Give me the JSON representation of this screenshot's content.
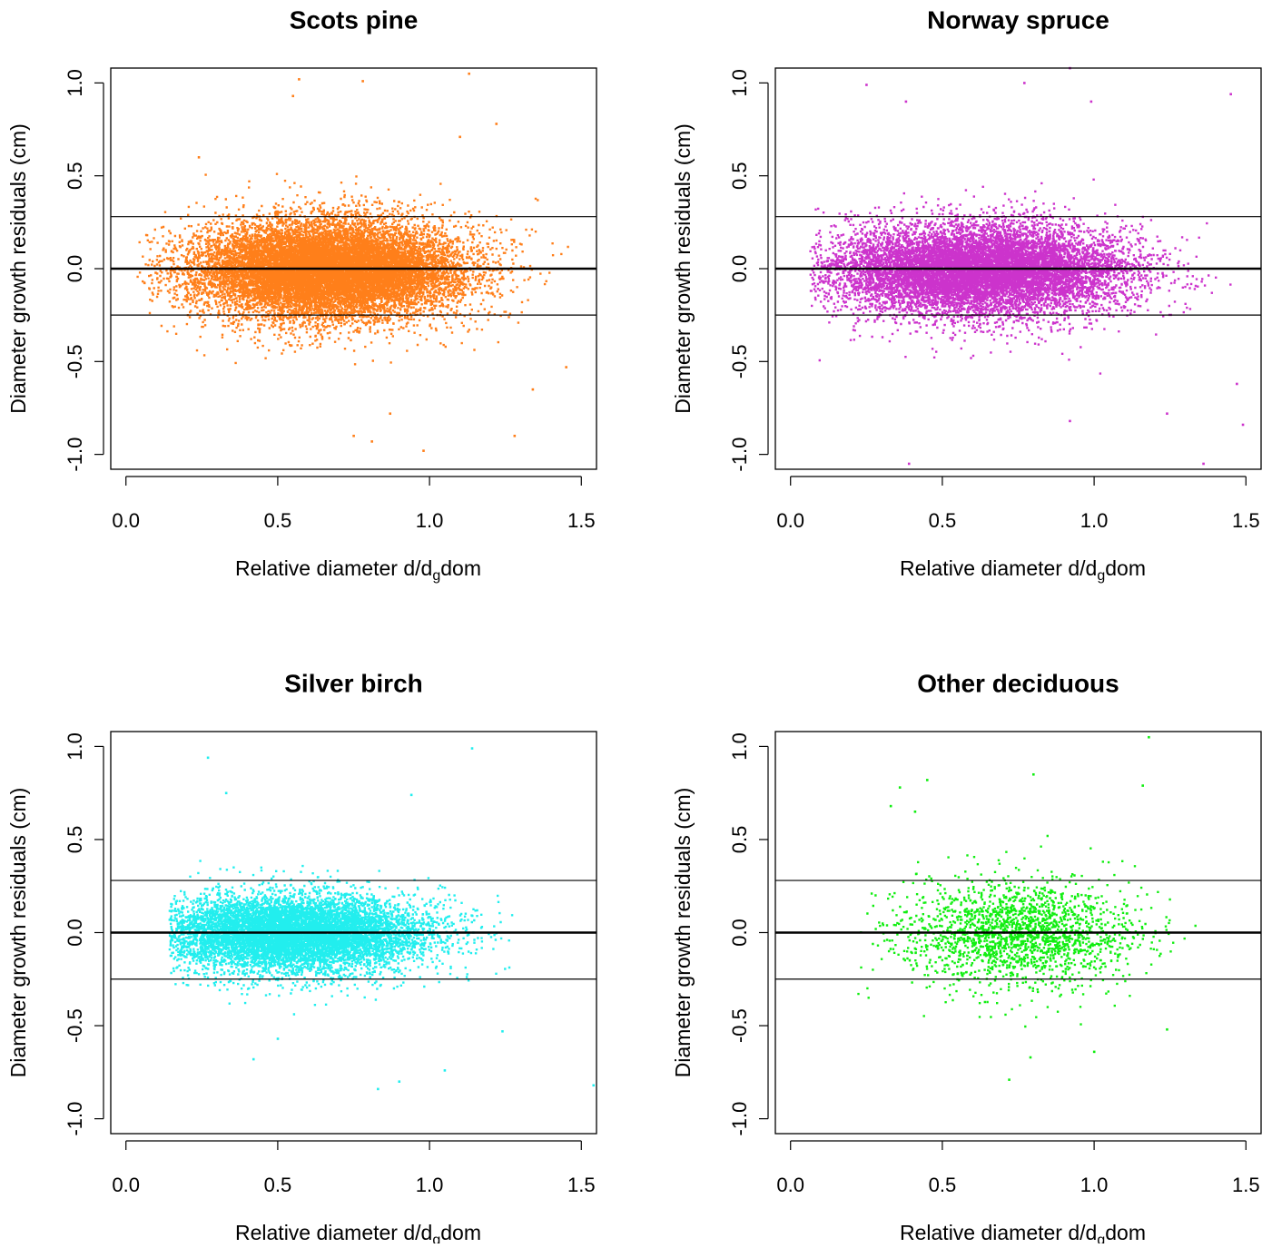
{
  "chart_data": [
    {
      "type": "scatter",
      "title": "Scots pine",
      "xlabel_main": "Relative diameter d/d",
      "xlabel_sub": "g",
      "xlabel_tail": "dom",
      "ylabel": "Diameter growth residuals (cm)",
      "xlim": [
        -0.05,
        1.55
      ],
      "ylim": [
        -1.08,
        1.08
      ],
      "xticks": [
        0.0,
        0.5,
        1.0,
        1.5
      ],
      "xtick_labels": [
        "0.0",
        "0.5",
        "1.0",
        "1.5"
      ],
      "yticks": [
        -1.0,
        -0.5,
        0.0,
        0.5,
        1.0
      ],
      "ytick_labels": [
        "-1.0",
        "-0.5",
        "0.0",
        "0.5",
        "1.0"
      ],
      "hlines": [
        0.28,
        0.0,
        -0.25
      ],
      "color": "#ff7f1a",
      "point_cloud": {
        "x_center": 0.66,
        "x_spread": 0.22,
        "y_spread": 0.13,
        "x_range": [
          0.03,
          1.46
        ],
        "y_range": [
          -1.0,
          1.05
        ],
        "n_points": 14000
      },
      "outliers": [
        [
          0.57,
          1.02
        ],
        [
          0.78,
          1.01
        ],
        [
          1.13,
          1.05
        ],
        [
          0.55,
          0.93
        ],
        [
          1.22,
          0.78
        ],
        [
          1.45,
          -0.53
        ],
        [
          1.34,
          -0.65
        ],
        [
          0.98,
          -0.98
        ],
        [
          0.81,
          -0.93
        ],
        [
          0.75,
          -0.9
        ],
        [
          1.28,
          -0.9
        ],
        [
          0.87,
          -0.78
        ],
        [
          0.24,
          0.6
        ],
        [
          1.1,
          0.71
        ]
      ]
    },
    {
      "type": "scatter",
      "title": "Norway spruce",
      "xlabel_main": "Relative diameter d/d",
      "xlabel_sub": "g",
      "xlabel_tail": "dom",
      "ylabel": "Diameter growth residuals (cm)",
      "xlim": [
        -0.05,
        1.55
      ],
      "ylim": [
        -1.08,
        1.08
      ],
      "xticks": [
        0.0,
        0.5,
        1.0,
        1.5
      ],
      "xtick_labels": [
        "0.0",
        "0.5",
        "1.0",
        "1.5"
      ],
      "yticks": [
        -1.0,
        -0.5,
        0.0,
        0.5,
        1.0
      ],
      "ytick_labels": [
        "-1.0",
        "-0.5",
        "0.0",
        "0.5",
        "1.0"
      ],
      "hlines": [
        0.28,
        0.0,
        -0.25
      ],
      "color": "#cc33cc",
      "point_cloud": {
        "x_center": 0.62,
        "x_spread": 0.24,
        "y_spread": 0.12,
        "x_range": [
          0.06,
          1.5
        ],
        "y_range": [
          -1.06,
          1.08
        ],
        "n_points": 11000
      },
      "outliers": [
        [
          0.92,
          1.08
        ],
        [
          0.77,
          1.0
        ],
        [
          0.25,
          0.99
        ],
        [
          1.45,
          0.94
        ],
        [
          0.38,
          0.9
        ],
        [
          0.99,
          0.9
        ],
        [
          1.49,
          -0.84
        ],
        [
          1.36,
          -1.05
        ],
        [
          0.39,
          -1.05
        ],
        [
          1.24,
          -0.78
        ],
        [
          0.92,
          -0.82
        ],
        [
          1.47,
          -0.62
        ]
      ]
    },
    {
      "type": "scatter",
      "title": "Silver birch",
      "xlabel_main": "Relative diameter d/d",
      "xlabel_sub": "g",
      "xlabel_tail": "dom",
      "ylabel": "Diameter growth residuals (cm)",
      "xlim": [
        -0.05,
        1.55
      ],
      "ylim": [
        -1.08,
        1.08
      ],
      "xticks": [
        0.0,
        0.5,
        1.0,
        1.5
      ],
      "xtick_labels": [
        "0.0",
        "0.5",
        "1.0",
        "1.5"
      ],
      "yticks": [
        -1.0,
        -0.5,
        0.0,
        0.5,
        1.0
      ],
      "ytick_labels": [
        "-1.0",
        "-0.5",
        "0.0",
        "0.5",
        "1.0"
      ],
      "hlines": [
        0.28,
        0.0,
        -0.25
      ],
      "color": "#22eeee",
      "point_cloud": {
        "x_center": 0.55,
        "x_spread": 0.22,
        "y_spread": 0.1,
        "x_range": [
          0.14,
          1.32
        ],
        "y_range": [
          -0.85,
          1.0
        ],
        "n_points": 9000
      },
      "outliers": [
        [
          0.27,
          0.94
        ],
        [
          1.14,
          0.99
        ],
        [
          0.33,
          0.75
        ],
        [
          0.94,
          0.74
        ],
        [
          1.54,
          -0.82
        ],
        [
          0.83,
          -0.84
        ],
        [
          0.9,
          -0.8
        ],
        [
          0.42,
          -0.68
        ],
        [
          1.05,
          -0.74
        ],
        [
          1.24,
          -0.53
        ],
        [
          0.5,
          -0.57
        ]
      ]
    },
    {
      "type": "scatter",
      "title": "Other deciduous",
      "xlabel_main": "Relative diameter d/d",
      "xlabel_sub": "g",
      "xlabel_tail": "dom",
      "ylabel": "Diameter growth residuals (cm)",
      "xlim": [
        -0.05,
        1.55
      ],
      "ylim": [
        -1.08,
        1.08
      ],
      "xticks": [
        0.0,
        0.5,
        1.0,
        1.5
      ],
      "xtick_labels": [
        "0.0",
        "0.5",
        "1.0",
        "1.5"
      ],
      "yticks": [
        -1.0,
        -0.5,
        0.0,
        0.5,
        1.0
      ],
      "ytick_labels": [
        "-1.0",
        "-0.5",
        "0.0",
        "0.5",
        "1.0"
      ],
      "hlines": [
        0.28,
        0.0,
        -0.25
      ],
      "color": "#11ee11",
      "point_cloud": {
        "x_center": 0.75,
        "x_spread": 0.2,
        "y_spread": 0.14,
        "x_range": [
          0.22,
          1.34
        ],
        "y_range": [
          -0.8,
          1.05
        ],
        "n_points": 2000
      },
      "outliers": [
        [
          1.18,
          1.05
        ],
        [
          0.8,
          0.85
        ],
        [
          0.45,
          0.82
        ],
        [
          0.36,
          0.78
        ],
        [
          1.16,
          0.79
        ],
        [
          0.33,
          0.68
        ],
        [
          0.72,
          -0.79
        ],
        [
          0.79,
          -0.67
        ],
        [
          1.0,
          -0.64
        ],
        [
          1.24,
          -0.52
        ],
        [
          0.41,
          0.65
        ]
      ]
    }
  ]
}
